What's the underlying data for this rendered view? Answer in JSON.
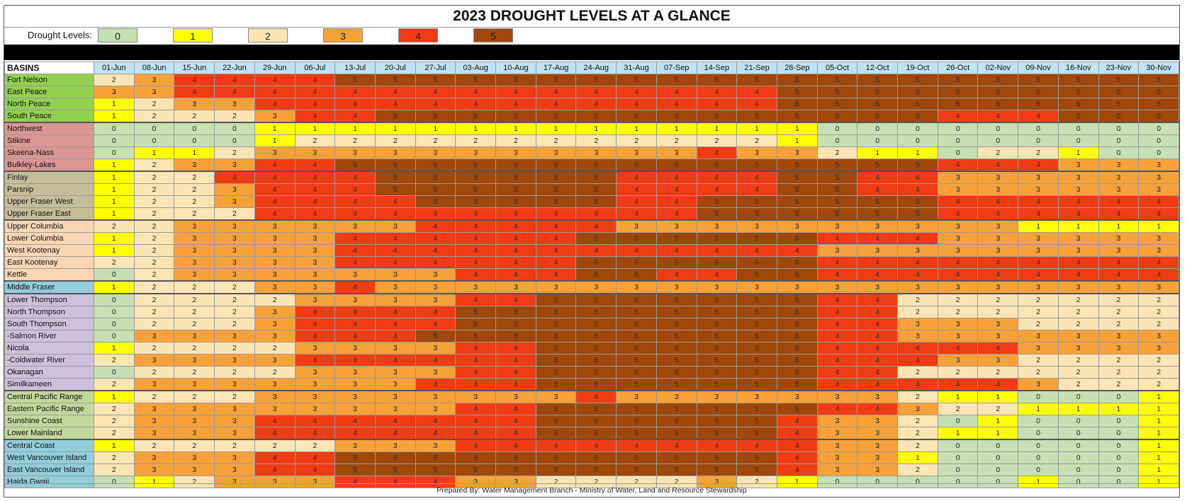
{
  "title": "2023 DROUGHT LEVELS AT A GLANCE",
  "legend": {
    "label": "Drought Levels:",
    "levels": [
      "0",
      "1",
      "2",
      "3",
      "4",
      "5"
    ],
    "colors": [
      "#c6e0b4",
      "#ffff00",
      "#fde4b4",
      "#f7a13a",
      "#f03c14",
      "#a0470a"
    ]
  },
  "footer": "Prepared By:  Water Management Branch - Ministry of Water, Land and Resource Stewardship",
  "chart_data": {
    "type": "heatmap",
    "row_header": "BASINS",
    "columns": [
      "01-Jun",
      "08-Jun",
      "15-Jun",
      "22-Jun",
      "29-Jun",
      "06-Jul",
      "13-Jul",
      "20-Jul",
      "27-Jul",
      "03-Aug",
      "10-Aug",
      "17-Aug",
      "24-Aug",
      "31-Aug",
      "07-Sep",
      "14-Sep",
      "21-Sep",
      "28-Sep",
      "05-Oct",
      "12-Oct",
      "19-Oct",
      "26-Oct",
      "02-Nov",
      "09-Nov",
      "16-Nov",
      "23-Nov",
      "30-Nov"
    ],
    "group_colors": [
      "#92d050",
      "#da9694",
      "#c4bd97",
      "#fcd5b4",
      "#92cddc",
      "#ccc0da",
      "#c4d79b",
      "#92cddc"
    ],
    "rows": [
      {
        "name": "Fort Nelson",
        "group": 0,
        "values": [
          2,
          3,
          4,
          4,
          4,
          4,
          5,
          5,
          5,
          5,
          5,
          5,
          5,
          5,
          5,
          5,
          5,
          5,
          5,
          5,
          5,
          5,
          5,
          5,
          5,
          5,
          5
        ]
      },
      {
        "name": "East Peace",
        "group": 0,
        "values": [
          3,
          3,
          4,
          4,
          4,
          4,
          4,
          4,
          4,
          4,
          4,
          4,
          4,
          4,
          4,
          4,
          4,
          5,
          5,
          5,
          5,
          5,
          5,
          5,
          5,
          5,
          5
        ]
      },
      {
        "name": "North Peace",
        "group": 0,
        "values": [
          1,
          2,
          3,
          3,
          4,
          4,
          4,
          4,
          4,
          4,
          4,
          4,
          4,
          4,
          4,
          4,
          4,
          5,
          5,
          5,
          5,
          5,
          5,
          5,
          5,
          5,
          5
        ]
      },
      {
        "name": "South Peace",
        "group": 0,
        "values": [
          1,
          2,
          2,
          2,
          3,
          4,
          4,
          5,
          5,
          5,
          5,
          5,
          5,
          5,
          5,
          5,
          5,
          5,
          5,
          5,
          5,
          4,
          4,
          4,
          5,
          5,
          5
        ]
      },
      {
        "name": "Northwest",
        "group": 1,
        "values": [
          0,
          0,
          0,
          0,
          1,
          1,
          1,
          1,
          1,
          1,
          1,
          1,
          1,
          1,
          1,
          1,
          1,
          1,
          0,
          0,
          0,
          0,
          0,
          0,
          0,
          0,
          0
        ]
      },
      {
        "name": "Stikine",
        "group": 1,
        "values": [
          0,
          0,
          0,
          0,
          1,
          2,
          2,
          2,
          2,
          2,
          2,
          2,
          2,
          2,
          2,
          2,
          2,
          1,
          0,
          0,
          0,
          0,
          0,
          0,
          0,
          0,
          0
        ]
      },
      {
        "name": "Skeena-Nass",
        "group": 1,
        "values": [
          0,
          1,
          1,
          2,
          3,
          3,
          3,
          3,
          3,
          3,
          3,
          3,
          3,
          3,
          3,
          4,
          3,
          3,
          2,
          1,
          1,
          0,
          2,
          2,
          1,
          0,
          0
        ]
      },
      {
        "name": "Bulkley-Lakes",
        "group": 1,
        "values": [
          1,
          2,
          3,
          3,
          4,
          4,
          5,
          5,
          5,
          5,
          5,
          5,
          5,
          5,
          5,
          5,
          5,
          5,
          5,
          5,
          5,
          4,
          4,
          4,
          3,
          3,
          3
        ]
      },
      {
        "name": "Finlay",
        "group": 2,
        "values": [
          1,
          2,
          2,
          4,
          4,
          4,
          4,
          5,
          5,
          5,
          5,
          5,
          5,
          4,
          4,
          4,
          4,
          5,
          5,
          4,
          4,
          3,
          3,
          3,
          3,
          3,
          3
        ]
      },
      {
        "name": "Parsnip",
        "group": 2,
        "values": [
          1,
          2,
          2,
          3,
          4,
          4,
          4,
          5,
          5,
          5,
          5,
          5,
          5,
          4,
          4,
          4,
          4,
          5,
          5,
          4,
          4,
          3,
          3,
          3,
          3,
          3,
          3
        ]
      },
      {
        "name": "Upper Fraser West",
        "group": 2,
        "values": [
          1,
          2,
          2,
          3,
          4,
          4,
          4,
          4,
          5,
          5,
          5,
          5,
          5,
          4,
          4,
          5,
          5,
          5,
          5,
          5,
          5,
          4,
          4,
          4,
          4,
          4,
          4
        ]
      },
      {
        "name": "Upper Fraser East",
        "group": 2,
        "values": [
          1,
          2,
          2,
          2,
          4,
          4,
          4,
          4,
          4,
          4,
          4,
          4,
          4,
          4,
          4,
          5,
          5,
          5,
          5,
          5,
          5,
          4,
          4,
          4,
          4,
          4,
          4
        ]
      },
      {
        "name": "Upper Columbia",
        "group": 3,
        "values": [
          2,
          2,
          3,
          3,
          3,
          3,
          3,
          3,
          4,
          4,
          4,
          4,
          4,
          3,
          3,
          3,
          3,
          3,
          3,
          3,
          3,
          3,
          3,
          1,
          1,
          1,
          1
        ]
      },
      {
        "name": "Lower Columbia",
        "group": 3,
        "values": [
          1,
          2,
          3,
          3,
          3,
          3,
          4,
          4,
          4,
          4,
          4,
          4,
          5,
          5,
          5,
          5,
          5,
          5,
          4,
          4,
          4,
          3,
          3,
          3,
          3,
          3,
          3
        ]
      },
      {
        "name": "West Kootenay",
        "group": 3,
        "values": [
          1,
          2,
          3,
          3,
          3,
          3,
          4,
          4,
          4,
          4,
          4,
          4,
          4,
          4,
          4,
          4,
          4,
          4,
          3,
          3,
          3,
          3,
          3,
          3,
          3,
          3,
          3
        ]
      },
      {
        "name": "East Kootenay",
        "group": 3,
        "values": [
          2,
          2,
          3,
          3,
          3,
          3,
          4,
          4,
          4,
          4,
          4,
          4,
          5,
          5,
          5,
          5,
          5,
          5,
          4,
          4,
          4,
          4,
          4,
          4,
          4,
          4,
          4
        ]
      },
      {
        "name": "Kettle",
        "group": 3,
        "values": [
          0,
          2,
          3,
          3,
          3,
          3,
          3,
          3,
          3,
          4,
          4,
          4,
          5,
          5,
          4,
          4,
          5,
          5,
          4,
          4,
          4,
          4,
          4,
          4,
          4,
          4,
          4
        ]
      },
      {
        "name": "Middle Fraser",
        "group": 4,
        "values": [
          1,
          2,
          2,
          2,
          3,
          3,
          4,
          3,
          3,
          3,
          3,
          3,
          3,
          3,
          3,
          3,
          3,
          3,
          3,
          3,
          3,
          3,
          3,
          3,
          3,
          3,
          3
        ]
      },
      {
        "name": "Lower Thompson",
        "group": 5,
        "values": [
          0,
          2,
          2,
          2,
          2,
          3,
          3,
          3,
          3,
          4,
          4,
          5,
          5,
          5,
          5,
          5,
          5,
          5,
          4,
          4,
          2,
          2,
          2,
          2,
          2,
          2,
          2
        ]
      },
      {
        "name": "North Thompson",
        "group": 5,
        "values": [
          0,
          2,
          2,
          2,
          3,
          4,
          4,
          4,
          4,
          5,
          5,
          5,
          5,
          5,
          5,
          5,
          5,
          5,
          4,
          4,
          2,
          2,
          2,
          2,
          2,
          2,
          2
        ]
      },
      {
        "name": "South Thompson",
        "group": 5,
        "values": [
          0,
          2,
          2,
          2,
          3,
          4,
          4,
          4,
          4,
          5,
          5,
          5,
          5,
          5,
          5,
          5,
          5,
          5,
          4,
          4,
          3,
          3,
          3,
          2,
          2,
          2,
          2
        ]
      },
      {
        "name": " -Salmon River",
        "group": 5,
        "values": [
          0,
          3,
          3,
          3,
          3,
          4,
          4,
          4,
          5,
          5,
          5,
          5,
          5,
          5,
          5,
          5,
          5,
          5,
          4,
          4,
          3,
          3,
          3,
          3,
          3,
          3,
          3
        ]
      },
      {
        "name": "Nicola",
        "group": 5,
        "values": [
          1,
          2,
          2,
          2,
          2,
          3,
          3,
          3,
          3,
          4,
          4,
          5,
          5,
          5,
          5,
          5,
          5,
          5,
          4,
          4,
          4,
          4,
          4,
          3,
          3,
          3,
          3
        ]
      },
      {
        "name": " -Coldwater River",
        "group": 5,
        "values": [
          2,
          3,
          3,
          3,
          3,
          4,
          4,
          4,
          4,
          4,
          4,
          5,
          5,
          5,
          5,
          5,
          5,
          5,
          4,
          4,
          4,
          3,
          3,
          2,
          2,
          2,
          2
        ]
      },
      {
        "name": "Okanagan",
        "group": 5,
        "values": [
          0,
          2,
          2,
          2,
          2,
          3,
          3,
          3,
          3,
          4,
          4,
          5,
          5,
          5,
          5,
          5,
          5,
          5,
          4,
          4,
          2,
          2,
          2,
          2,
          2,
          2,
          2
        ]
      },
      {
        "name": "Similkameen",
        "group": 5,
        "values": [
          2,
          3,
          3,
          3,
          3,
          3,
          3,
          3,
          4,
          4,
          4,
          5,
          5,
          5,
          5,
          5,
          5,
          5,
          4,
          4,
          4,
          4,
          4,
          3,
          2,
          2,
          2
        ]
      },
      {
        "name": "Central Pacific Range",
        "group": 6,
        "values": [
          1,
          2,
          2,
          2,
          3,
          3,
          3,
          3,
          3,
          3,
          3,
          3,
          4,
          3,
          3,
          3,
          3,
          3,
          3,
          3,
          2,
          1,
          1,
          0,
          0,
          0,
          1
        ]
      },
      {
        "name": "Eastern Pacific Range",
        "group": 6,
        "values": [
          2,
          3,
          3,
          3,
          3,
          3,
          3,
          3,
          3,
          4,
          4,
          5,
          5,
          5,
          5,
          5,
          5,
          5,
          4,
          4,
          3,
          2,
          2,
          1,
          1,
          1,
          1
        ]
      },
      {
        "name": "Sunshine Coast",
        "group": 6,
        "values": [
          2,
          3,
          3,
          3,
          4,
          4,
          4,
          4,
          4,
          4,
          4,
          5,
          5,
          5,
          5,
          5,
          5,
          4,
          3,
          3,
          2,
          0,
          1,
          0,
          0,
          0,
          1
        ]
      },
      {
        "name": "Lower Mainland",
        "group": 6,
        "values": [
          2,
          3,
          3,
          3,
          4,
          4,
          4,
          4,
          4,
          4,
          4,
          5,
          5,
          5,
          5,
          5,
          5,
          4,
          3,
          3,
          2,
          1,
          1,
          0,
          0,
          0,
          1
        ]
      },
      {
        "name": "Central Coast",
        "group": 7,
        "values": [
          1,
          2,
          2,
          2,
          2,
          2,
          3,
          3,
          3,
          4,
          4,
          4,
          4,
          4,
          4,
          4,
          4,
          4,
          3,
          3,
          2,
          0,
          0,
          0,
          0,
          0,
          1
        ]
      },
      {
        "name": "West Vancouver Island",
        "group": 7,
        "values": [
          2,
          3,
          3,
          3,
          4,
          4,
          5,
          5,
          5,
          5,
          5,
          5,
          5,
          5,
          5,
          5,
          5,
          4,
          3,
          3,
          1,
          0,
          0,
          0,
          0,
          0,
          1
        ]
      },
      {
        "name": "East Vancouver Island",
        "group": 7,
        "values": [
          2,
          3,
          3,
          3,
          4,
          4,
          5,
          5,
          5,
          5,
          5,
          5,
          5,
          5,
          5,
          5,
          5,
          4,
          3,
          3,
          2,
          0,
          0,
          0,
          0,
          0,
          1
        ]
      },
      {
        "name": "Haida Gwaii",
        "group": 7,
        "values": [
          0,
          1,
          2,
          3,
          3,
          3,
          4,
          4,
          4,
          3,
          3,
          2,
          2,
          2,
          2,
          3,
          2,
          1,
          0,
          0,
          0,
          0,
          0,
          1,
          0,
          0,
          1
        ]
      }
    ]
  }
}
